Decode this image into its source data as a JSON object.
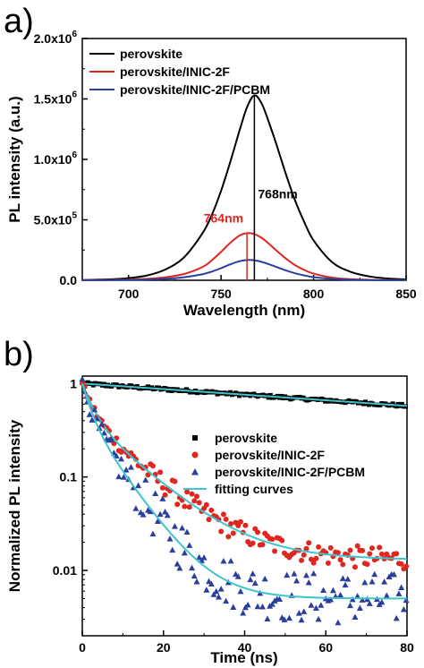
{
  "chart_data": [
    {
      "panel": "a)",
      "type": "line",
      "xlabel": "Wavelength (nm)",
      "ylabel": "PL intensity (a.u.)",
      "xlim": [
        675,
        850
      ],
      "ylim": [
        0,
        2000000
      ],
      "xticks": [
        700,
        750,
        800,
        850
      ],
      "xtick_labels": [
        "700",
        "750",
        "800",
        "850"
      ],
      "yticks": [
        0,
        500000,
        1000000,
        1500000,
        2000000
      ],
      "ytick_labels": [
        {
          "base": "0.0",
          "exp": ""
        },
        {
          "base": "5.0x10",
          "exp": "5"
        },
        {
          "base": "1.0x10",
          "exp": "6"
        },
        {
          "base": "1.5x10",
          "exp": "6"
        },
        {
          "base": "2.0x10",
          "exp": "6"
        }
      ],
      "legend_position": "top-left",
      "series": [
        {
          "name": "perovskite",
          "color": "#000000",
          "peak_x": 768,
          "peak_y": 1530000,
          "x": [
            675,
            690,
            700,
            710,
            720,
            730,
            740,
            745,
            750,
            755,
            760,
            764,
            768,
            772,
            776,
            780,
            785,
            790,
            795,
            800,
            810,
            820,
            830,
            840,
            850
          ],
          "y": [
            2000,
            8000,
            18000,
            40000,
            90000,
            190000,
            390000,
            540000,
            740000,
            980000,
            1240000,
            1430000,
            1530000,
            1460000,
            1300000,
            1120000,
            880000,
            660000,
            480000,
            330000,
            150000,
            70000,
            32000,
            15000,
            7000
          ]
        },
        {
          "name": "perovskite/INIC-2F",
          "color": "#e0261f",
          "peak_x": 764,
          "peak_y": 390000,
          "x": [
            675,
            690,
            700,
            710,
            720,
            730,
            740,
            745,
            750,
            755,
            760,
            764,
            768,
            772,
            776,
            780,
            785,
            790,
            795,
            800,
            810,
            820,
            830,
            840,
            850
          ],
          "y": [
            1000,
            3000,
            6000,
            12000,
            25000,
            52000,
            110000,
            165000,
            235000,
            310000,
            370000,
            390000,
            382000,
            350000,
            300000,
            245000,
            180000,
            125000,
            85000,
            55000,
            22000,
            9000,
            4000,
            2000,
            1000
          ]
        },
        {
          "name": "perovskite/INIC-2F/PCBM",
          "color": "#2a3f9b",
          "peak_x": 765,
          "peak_y": 168000,
          "x": [
            675,
            690,
            700,
            710,
            720,
            730,
            740,
            745,
            750,
            755,
            760,
            764,
            768,
            772,
            776,
            780,
            785,
            790,
            795,
            800,
            810,
            820,
            830,
            840,
            850
          ],
          "y": [
            500,
            1500,
            3000,
            6000,
            12000,
            25000,
            50000,
            72000,
            100000,
            132000,
            158000,
            168000,
            165000,
            152000,
            132000,
            110000,
            82000,
            58000,
            40000,
            26000,
            11000,
            5000,
            2000,
            1000,
            500
          ]
        }
      ],
      "annotations": [
        {
          "text": "768nm",
          "x": 768,
          "color": "#000000"
        },
        {
          "text": "764nm",
          "x": 764,
          "color": "#e0261f"
        }
      ]
    },
    {
      "panel": "b)",
      "type": "scatter",
      "xlabel": "Time (ns)",
      "ylabel": "Normalized PL intensity",
      "xlim": [
        0,
        80
      ],
      "ylim": [
        0.002,
        1.2
      ],
      "log_y": true,
      "xticks": [
        0,
        20,
        40,
        60,
        80
      ],
      "xtick_labels": [
        "0",
        "20",
        "40",
        "60",
        "80"
      ],
      "yticks": [
        1,
        0.1,
        0.01
      ],
      "ytick_labels": [
        "1",
        "0.1",
        "0.01"
      ],
      "legend_position": "center-right",
      "series": [
        {
          "name": "perovskite",
          "color": "#000000",
          "marker": "square",
          "start": 1.0,
          "decays": [
            [
              1.0,
              145
            ]
          ],
          "floor": 0,
          "noise": 0.015
        },
        {
          "name": "perovskite/INIC-2F",
          "color": "#e0261f",
          "marker": "circle",
          "start": 1.0,
          "decays": [
            [
              0.55,
              2.5
            ],
            [
              0.45,
              11.0
            ]
          ],
          "floor": 0.013,
          "noise": 0.12
        },
        {
          "name": "perovskite/INIC-2F/PCBM",
          "color": "#2a3f9b",
          "marker": "triangle",
          "start": 1.0,
          "decays": [
            [
              0.55,
              2.0
            ],
            [
              0.45,
              7.0
            ]
          ],
          "floor": 0.005,
          "noise": 0.28
        },
        {
          "name": "fitting curves",
          "color": "#3ec3cf",
          "marker": "line"
        }
      ]
    }
  ]
}
